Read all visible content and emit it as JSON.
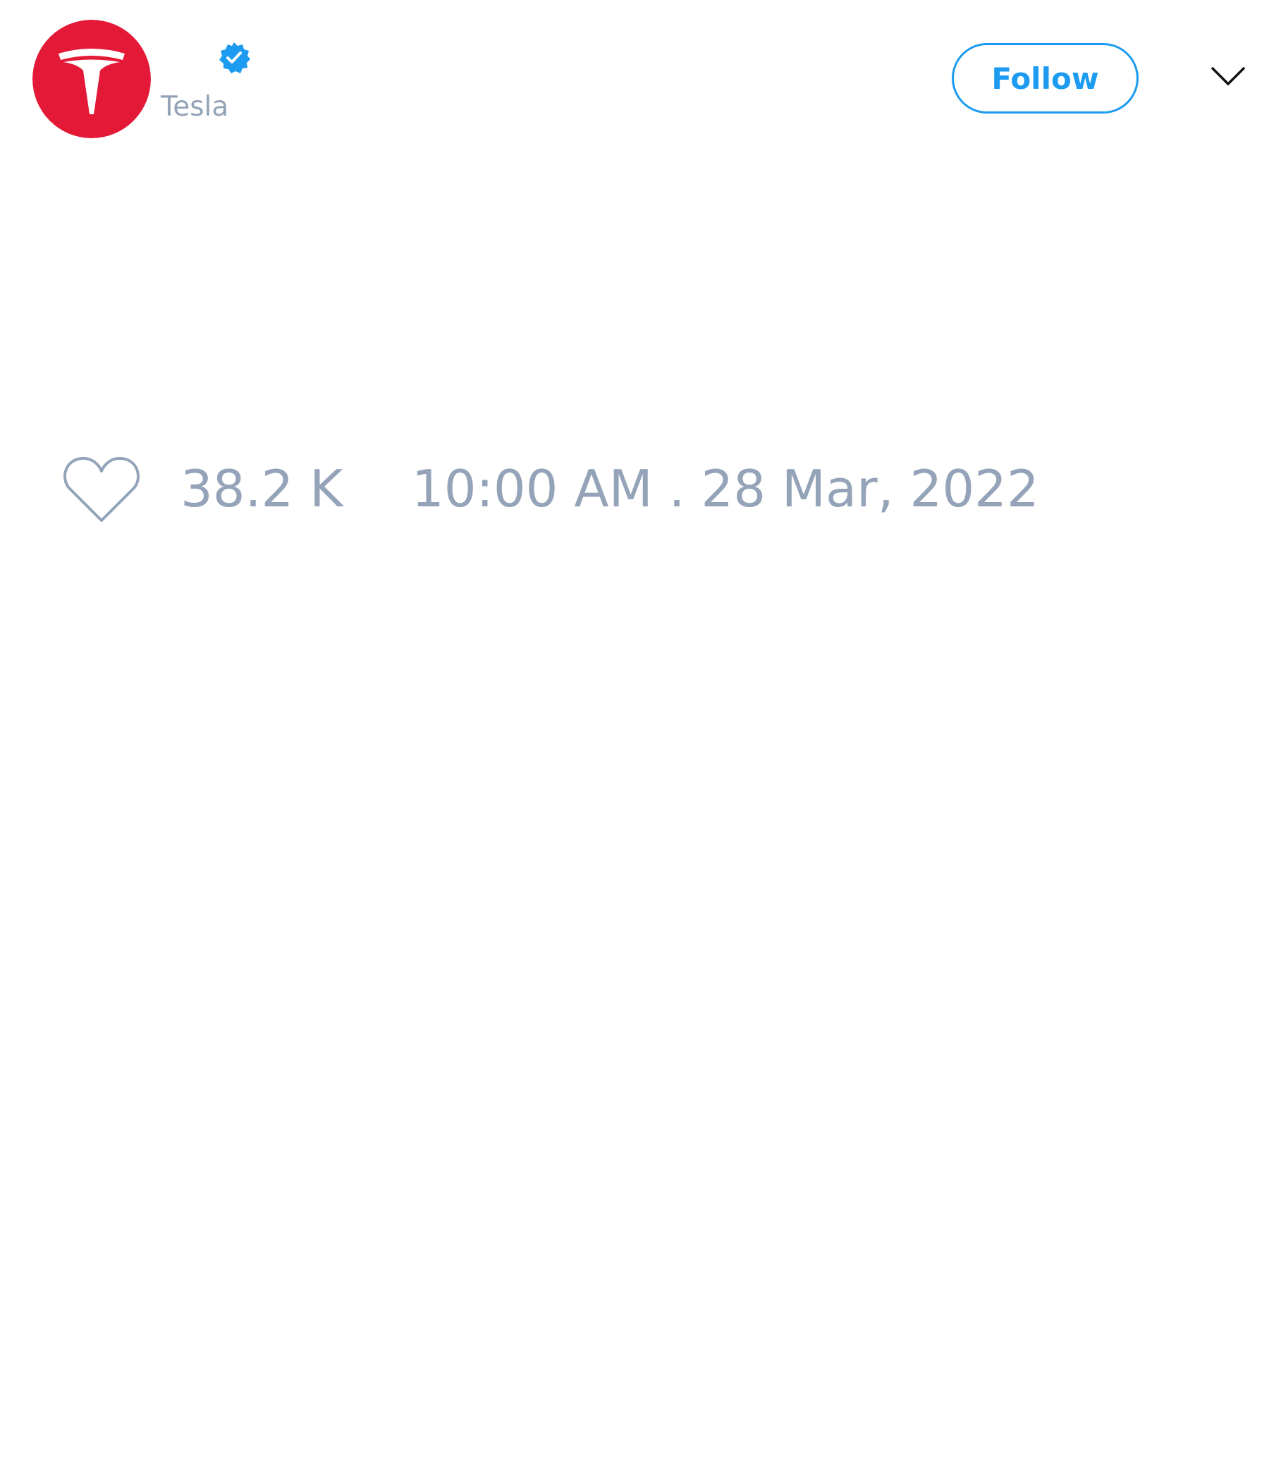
{
  "author": {
    "handle": "Tesla",
    "verified": true,
    "avatar_icon": "tesla-logo-icon",
    "avatar_color": "#e31937"
  },
  "header": {
    "follow_label": "Follow",
    "menu_icon": "chevron-down-icon"
  },
  "stats": {
    "like_icon": "heart-icon",
    "likes": "38.2 K",
    "timestamp": "10:00 AM . 28 Mar, 2022"
  },
  "colors": {
    "accent": "#1d9bf0",
    "muted_text": "#94a3b8"
  }
}
